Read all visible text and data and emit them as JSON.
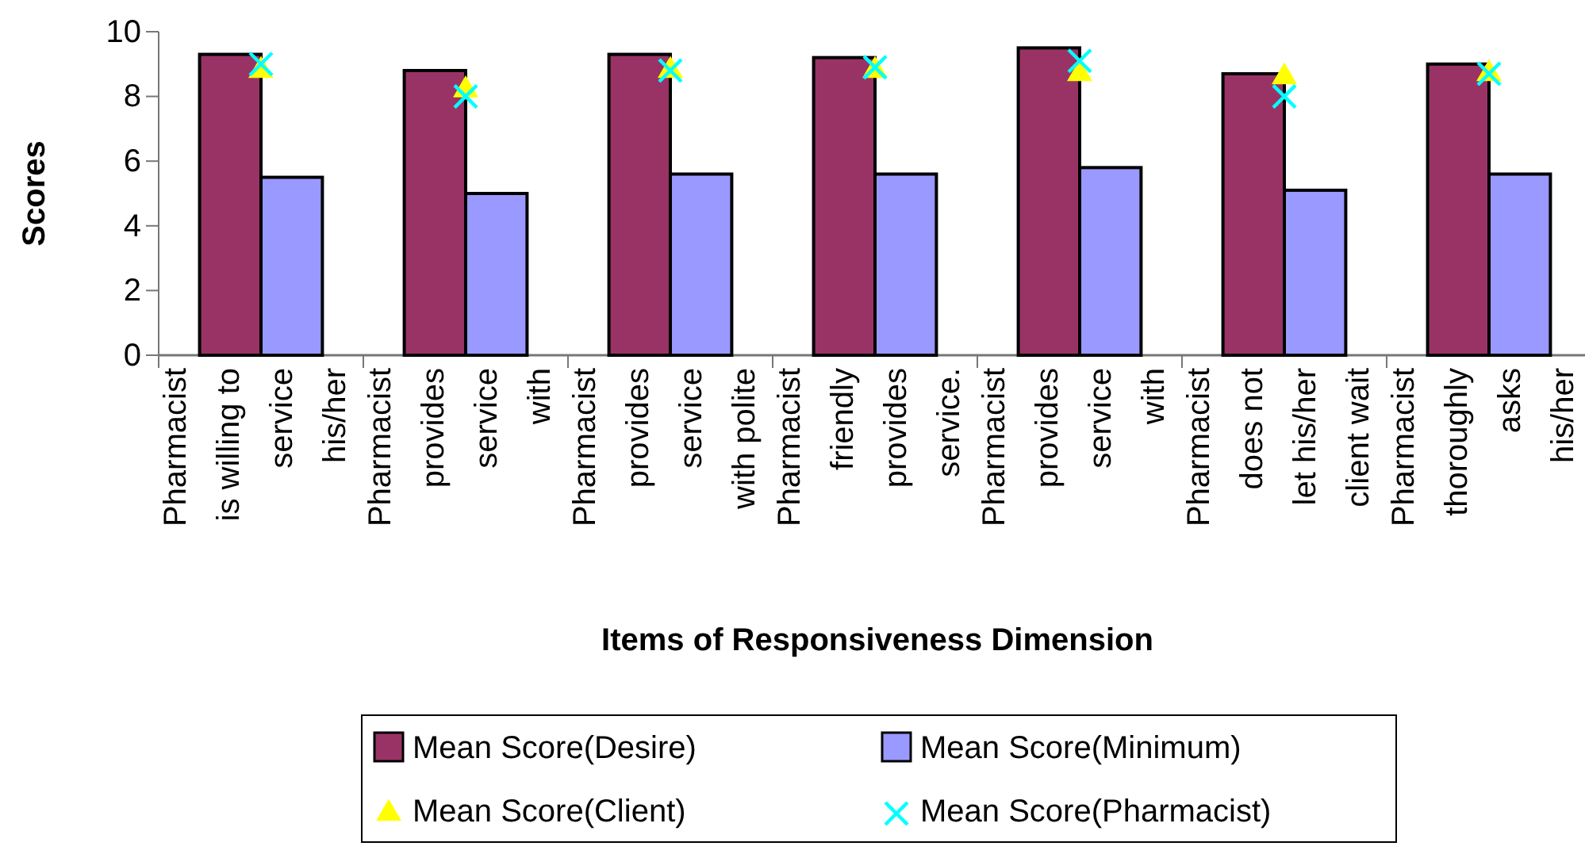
{
  "chart_data": {
    "type": "bar",
    "xlabel": "Items of Responsiveness Dimension",
    "ylabel": "Scores",
    "categories": [
      "Pharmacist\nis willing to\nservice\nhis/her",
      "Pharmacist\nprovides\nservice\nwith",
      "Pharmacist\nprovides\nservice\nwith polite",
      "Pharmacist\nfriendly\nprovides\nservice.",
      "Pharmacist\nprovides\nservice\nwith",
      "Pharmacist\ndoes not\nlet his/her\nclient wait",
      "Pharmacist\nthoroughly\nasks\nhis/her"
    ],
    "series": [
      {
        "name": "Mean Score(Desire)",
        "color": "#993366",
        "values": [
          9.3,
          8.8,
          9.3,
          9.2,
          9.5,
          8.7,
          9.0
        ]
      },
      {
        "name": "Mean Score(Minimum)",
        "color": "#9999ff",
        "values": [
          5.5,
          5.0,
          5.6,
          5.6,
          5.8,
          5.1,
          5.6
        ]
      },
      {
        "name": "Mean Score(Client)",
        "type": "scatter",
        "marker": "triangle",
        "color": "#ffff00",
        "values": [
          8.8,
          8.2,
          8.8,
          8.8,
          8.7,
          8.6,
          8.7
        ]
      },
      {
        "name": "Mean Score(Pharmacist)",
        "type": "scatter",
        "marker": "cross",
        "color": "#00ffff",
        "values": [
          9.0,
          8.0,
          8.8,
          8.9,
          9.1,
          8.0,
          8.7
        ]
      }
    ],
    "ylim": [
      0,
      10
    ],
    "yticks": [
      0,
      2,
      4,
      6,
      8,
      10
    ],
    "legend": "bottom",
    "grid": false
  }
}
